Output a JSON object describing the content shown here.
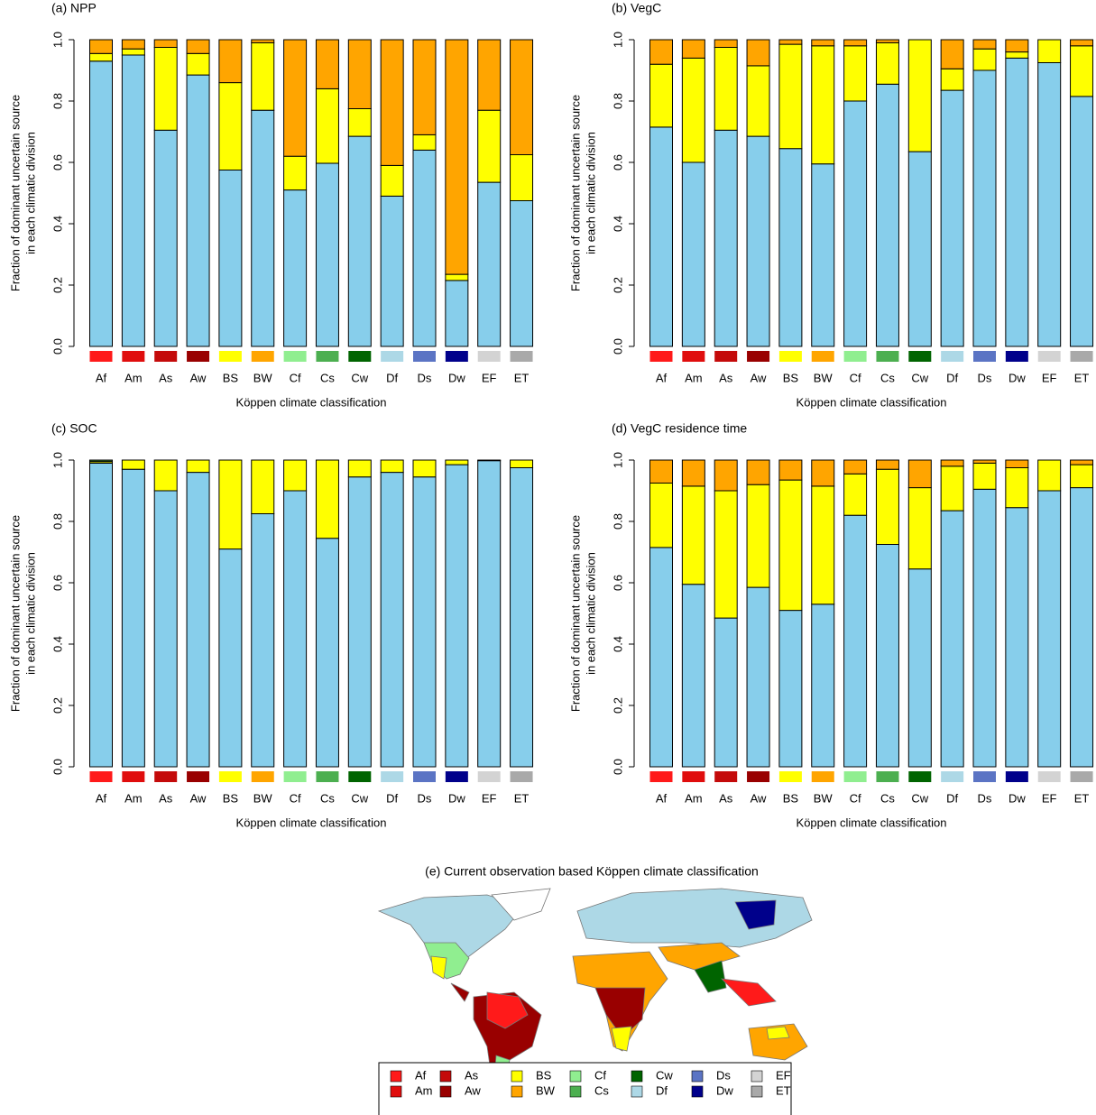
{
  "chart_data": [
    {
      "type": "bar",
      "stacked": true,
      "title": "(a) NPP",
      "y_label": [
        "Fraction of dominant uncertain source",
        "in each climatic division"
      ],
      "x_label": "Köppen climate classification",
      "categories": [
        "Af",
        "Am",
        "As",
        "Aw",
        "BS",
        "BW",
        "Cf",
        "Cs",
        "Cw",
        "Df",
        "Ds",
        "Dw",
        "EF",
        "ET"
      ],
      "category_colors": [
        "#ff1a1a",
        "#e00d0d",
        "#c40a0a",
        "#990000",
        "#ffff00",
        "#ffa500",
        "#90ee90",
        "#4caf50",
        "#006400",
        "#add8e6",
        "#5b74c4",
        "#00008b",
        "#d3d3d3",
        "#a9a9a9"
      ],
      "series": [
        {
          "color": "#87ceeb",
          "values": [
            0.93,
            0.95,
            0.705,
            0.885,
            0.575,
            0.77,
            0.51,
            0.597,
            0.685,
            0.49,
            0.64,
            0.215,
            0.535,
            0.475
          ]
        },
        {
          "color": "#ffff00",
          "values": [
            0.025,
            0.02,
            0.27,
            0.07,
            0.285,
            0.22,
            0.11,
            0.243,
            0.09,
            0.1,
            0.05,
            0.02,
            0.235,
            0.15
          ]
        },
        {
          "color": "#ffa500",
          "values": [
            0.045,
            0.03,
            0.025,
            0.045,
            0.14,
            0.01,
            0.38,
            0.16,
            0.225,
            0.41,
            0.31,
            0.765,
            0.23,
            0.375
          ]
        }
      ],
      "ylim": [
        0,
        1
      ],
      "yticks": [
        {
          "value": 0,
          "label": "0.0"
        },
        0.2,
        0.4,
        0.6,
        0.8,
        {
          "value": 1,
          "label": "1.0"
        }
      ]
    },
    {
      "type": "bar",
      "stacked": true,
      "title": "(b) VegC",
      "y_label": [
        "Fraction of dominant uncertain source",
        "in each climatic division"
      ],
      "x_label": "Köppen climate classification",
      "categories": [
        "Af",
        "Am",
        "As",
        "Aw",
        "BS",
        "BW",
        "Cf",
        "Cs",
        "Cw",
        "Df",
        "Ds",
        "Dw",
        "EF",
        "ET"
      ],
      "category_colors": [
        "#ff1a1a",
        "#e00d0d",
        "#c40a0a",
        "#990000",
        "#ffff00",
        "#ffa500",
        "#90ee90",
        "#4caf50",
        "#006400",
        "#add8e6",
        "#5b74c4",
        "#00008b",
        "#d3d3d3",
        "#a9a9a9"
      ],
      "series": [
        {
          "color": "#87ceeb",
          "values": [
            0.715,
            0.6,
            0.705,
            0.685,
            0.645,
            0.595,
            0.8,
            0.855,
            0.635,
            0.835,
            0.9,
            0.94,
            0.925,
            0.815
          ]
        },
        {
          "color": "#ffff00",
          "values": [
            0.205,
            0.34,
            0.27,
            0.23,
            0.34,
            0.385,
            0.18,
            0.135,
            0.365,
            0.07,
            0.07,
            0.02,
            0.075,
            0.165
          ]
        },
        {
          "color": "#ffa500",
          "values": [
            0.08,
            0.06,
            0.025,
            0.085,
            0.015,
            0.02,
            0.02,
            0.01,
            0,
            0.095,
            0.03,
            0.04,
            0,
            0.02
          ]
        }
      ],
      "ylim": [
        0,
        1
      ],
      "yticks": [
        {
          "value": 0,
          "label": "0.0"
        },
        0.2,
        0.4,
        0.6,
        0.8,
        {
          "value": 1,
          "label": "1.0"
        }
      ]
    },
    {
      "type": "bar",
      "stacked": true,
      "title": "(c) SOC",
      "y_label": [
        "Fraction of dominant uncertain source",
        "in each climatic division"
      ],
      "x_label": "Köppen climate classification",
      "categories": [
        "Af",
        "Am",
        "As",
        "Aw",
        "BS",
        "BW",
        "Cf",
        "Cs",
        "Cw",
        "Df",
        "Ds",
        "Dw",
        "EF",
        "ET"
      ],
      "category_colors": [
        "#ff1a1a",
        "#e00d0d",
        "#c40a0a",
        "#990000",
        "#ffff00",
        "#ffa500",
        "#90ee90",
        "#4caf50",
        "#006400",
        "#add8e6",
        "#5b74c4",
        "#00008b",
        "#d3d3d3",
        "#a9a9a9"
      ],
      "series": [
        {
          "color": "#87ceeb",
          "values": [
            0.99,
            0.97,
            0.9,
            0.96,
            0.71,
            0.825,
            0.9,
            0.745,
            0.945,
            0.96,
            0.945,
            0.985,
            0.998,
            0.975
          ]
        },
        {
          "color": "#ffff00",
          "values": [
            0.005,
            0.03,
            0.1,
            0.04,
            0.29,
            0.175,
            0.1,
            0.255,
            0.055,
            0.04,
            0.055,
            0.015,
            0.002,
            0.025
          ]
        },
        {
          "color": "#2e6b2e",
          "values": [
            0.005,
            0,
            0,
            0,
            0,
            0,
            0,
            0,
            0,
            0,
            0,
            0,
            0,
            0
          ]
        }
      ],
      "ylim": [
        0,
        1
      ],
      "yticks": [
        {
          "value": 0,
          "label": "0.0"
        },
        0.2,
        0.4,
        0.6,
        0.8,
        {
          "value": 1,
          "label": "1.0"
        }
      ]
    },
    {
      "type": "bar",
      "stacked": true,
      "title": "(d) VegC residence time",
      "y_label": [
        "Fraction of dominant uncertain source",
        "in each climatic division"
      ],
      "x_label": "Köppen climate classification",
      "categories": [
        "Af",
        "Am",
        "As",
        "Aw",
        "BS",
        "BW",
        "Cf",
        "Cs",
        "Cw",
        "Df",
        "Ds",
        "Dw",
        "EF",
        "ET"
      ],
      "category_colors": [
        "#ff1a1a",
        "#e00d0d",
        "#c40a0a",
        "#990000",
        "#ffff00",
        "#ffa500",
        "#90ee90",
        "#4caf50",
        "#006400",
        "#add8e6",
        "#5b74c4",
        "#00008b",
        "#d3d3d3",
        "#a9a9a9"
      ],
      "series": [
        {
          "color": "#87ceeb",
          "values": [
            0.715,
            0.595,
            0.485,
            0.585,
            0.51,
            0.53,
            0.82,
            0.725,
            0.645,
            0.835,
            0.905,
            0.845,
            0.9,
            0.91
          ]
        },
        {
          "color": "#ffff00",
          "values": [
            0.21,
            0.32,
            0.415,
            0.335,
            0.425,
            0.385,
            0.135,
            0.245,
            0.265,
            0.145,
            0.085,
            0.13,
            0.1,
            0.075
          ]
        },
        {
          "color": "#ffa500",
          "values": [
            0.075,
            0.085,
            0.1,
            0.08,
            0.065,
            0.085,
            0.045,
            0.03,
            0.09,
            0.02,
            0.01,
            0.025,
            0,
            0.015
          ]
        }
      ],
      "ylim": [
        0,
        1
      ],
      "yticks": [
        {
          "value": 0,
          "label": "0.0"
        },
        0.2,
        0.4,
        0.6,
        0.8,
        {
          "value": 1,
          "label": "1.0"
        }
      ]
    }
  ],
  "map": {
    "title": "(e) Current observation based Köppen climate classification",
    "legend": [
      {
        "label": "Af",
        "color": "#ff1a1a"
      },
      {
        "label": "Am",
        "color": "#e00d0d"
      },
      {
        "label": "As",
        "color": "#c40a0a"
      },
      {
        "label": "Aw",
        "color": "#990000"
      },
      {
        "label": "BS",
        "color": "#ffff00"
      },
      {
        "label": "BW",
        "color": "#ffa500"
      },
      {
        "label": "Cf",
        "color": "#90ee90"
      },
      {
        "label": "Cs",
        "color": "#4caf50"
      },
      {
        "label": "Cw",
        "color": "#006400"
      },
      {
        "label": "Df",
        "color": "#add8e6"
      },
      {
        "label": "Ds",
        "color": "#5b74c4"
      },
      {
        "label": "Dw",
        "color": "#00008b"
      },
      {
        "label": "EF",
        "color": "#d3d3d3"
      },
      {
        "label": "ET",
        "color": "#a9a9a9"
      }
    ]
  }
}
